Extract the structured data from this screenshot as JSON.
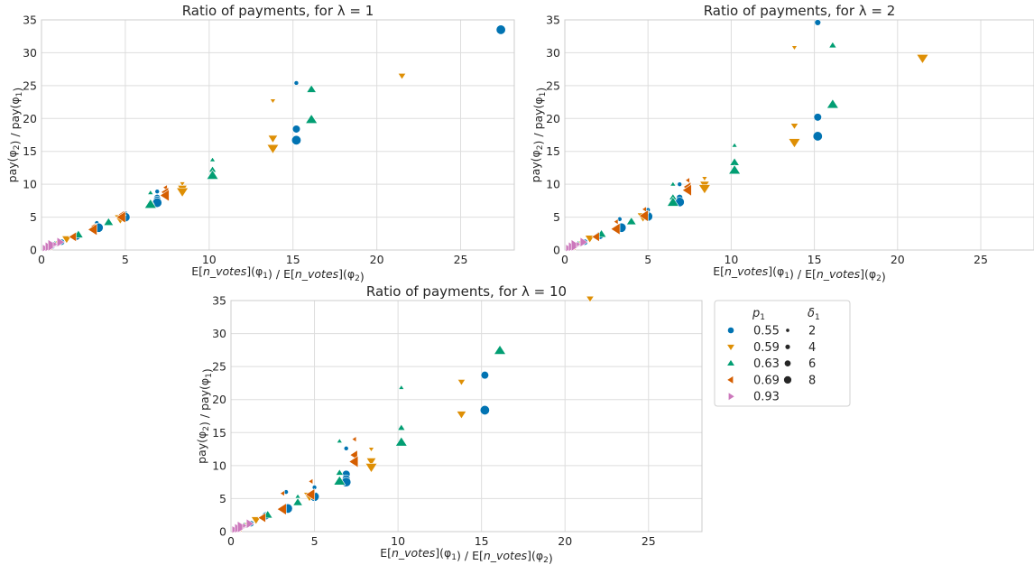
{
  "chart_data": [
    {
      "type": "scatter",
      "title": "Ratio of payments, for λ = 1",
      "xlabel": "E[n_votes](φ1) / E[n_votes](φ2)",
      "ylabel": "pay(φ2) / pay(φ1)",
      "xlim": [
        0,
        28.2
      ],
      "ylim": [
        0,
        35
      ],
      "xticks": [
        0,
        5,
        10,
        15,
        20,
        25
      ],
      "yticks": [
        0,
        5,
        10,
        15,
        20,
        25,
        30,
        35
      ],
      "grid": true,
      "points": [
        {
          "p1": "0.55",
          "d1": 2,
          "x": 15.2,
          "y": 25.4
        },
        {
          "p1": "0.55",
          "d1": 6,
          "x": 15.2,
          "y": 18.4
        },
        {
          "p1": "0.55",
          "d1": 8,
          "x": 15.2,
          "y": 16.7
        },
        {
          "p1": "0.55",
          "d1": 8,
          "x": 27.4,
          "y": 33.5
        },
        {
          "p1": "0.55",
          "d1": 2,
          "x": 6.9,
          "y": 8.9
        },
        {
          "p1": "0.55",
          "d1": 4,
          "x": 6.9,
          "y": 8.0
        },
        {
          "p1": "0.55",
          "d1": 6,
          "x": 6.9,
          "y": 7.6
        },
        {
          "p1": "0.55",
          "d1": 8,
          "x": 6.9,
          "y": 7.2
        },
        {
          "p1": "0.55",
          "d1": 2,
          "x": 5.0,
          "y": 5.6
        },
        {
          "p1": "0.55",
          "d1": 8,
          "x": 5.0,
          "y": 5.0
        },
        {
          "p1": "0.55",
          "d1": 2,
          "x": 3.3,
          "y": 4.1
        },
        {
          "p1": "0.55",
          "d1": 8,
          "x": 3.4,
          "y": 3.4
        },
        {
          "p1": "0.55",
          "d1": 6,
          "x": 2.1,
          "y": 2.1
        },
        {
          "p1": "0.55",
          "d1": 4,
          "x": 1.2,
          "y": 1.2
        },
        {
          "p1": "0.55",
          "d1": 6,
          "x": 0.6,
          "y": 0.7
        },
        {
          "p1": "0.59",
          "d1": 4,
          "x": 21.5,
          "y": 26.5
        },
        {
          "p1": "0.59",
          "d1": 2,
          "x": 13.8,
          "y": 22.7
        },
        {
          "p1": "0.59",
          "d1": 6,
          "x": 13.8,
          "y": 17.0
        },
        {
          "p1": "0.59",
          "d1": 8,
          "x": 13.8,
          "y": 15.5
        },
        {
          "p1": "0.59",
          "d1": 2,
          "x": 8.4,
          "y": 10.1
        },
        {
          "p1": "0.59",
          "d1": 6,
          "x": 8.4,
          "y": 9.4
        },
        {
          "p1": "0.59",
          "d1": 8,
          "x": 8.4,
          "y": 8.9
        },
        {
          "p1": "0.59",
          "d1": 8,
          "x": 4.7,
          "y": 4.8
        },
        {
          "p1": "0.59",
          "d1": 6,
          "x": 1.5,
          "y": 1.7
        },
        {
          "p1": "0.59",
          "d1": 4,
          "x": 0.9,
          "y": 1.0
        },
        {
          "p1": "0.63",
          "d1": 6,
          "x": 16.1,
          "y": 24.4
        },
        {
          "p1": "0.63",
          "d1": 8,
          "x": 16.1,
          "y": 19.8
        },
        {
          "p1": "0.63",
          "d1": 2,
          "x": 10.2,
          "y": 13.7
        },
        {
          "p1": "0.63",
          "d1": 4,
          "x": 10.2,
          "y": 12.2
        },
        {
          "p1": "0.63",
          "d1": 8,
          "x": 10.2,
          "y": 11.3
        },
        {
          "p1": "0.63",
          "d1": 2,
          "x": 6.5,
          "y": 8.7
        },
        {
          "p1": "0.63",
          "d1": 4,
          "x": 6.5,
          "y": 7.3
        },
        {
          "p1": "0.63",
          "d1": 8,
          "x": 6.5,
          "y": 6.9
        },
        {
          "p1": "0.63",
          "d1": 6,
          "x": 4.0,
          "y": 4.2
        },
        {
          "p1": "0.63",
          "d1": 6,
          "x": 2.2,
          "y": 2.3
        },
        {
          "p1": "0.63",
          "d1": 4,
          "x": 0.8,
          "y": 0.9
        },
        {
          "p1": "0.69",
          "d1": 2,
          "x": 7.4,
          "y": 9.5
        },
        {
          "p1": "0.69",
          "d1": 6,
          "x": 7.4,
          "y": 8.8
        },
        {
          "p1": "0.69",
          "d1": 8,
          "x": 7.4,
          "y": 8.3
        },
        {
          "p1": "0.69",
          "d1": 4,
          "x": 4.8,
          "y": 5.4
        },
        {
          "p1": "0.69",
          "d1": 8,
          "x": 4.8,
          "y": 5.0
        },
        {
          "p1": "0.69",
          "d1": 2,
          "x": 3.1,
          "y": 3.6
        },
        {
          "p1": "0.69",
          "d1": 8,
          "x": 3.1,
          "y": 3.1
        },
        {
          "p1": "0.69",
          "d1": 6,
          "x": 1.9,
          "y": 2.0
        },
        {
          "p1": "0.69",
          "d1": 4,
          "x": 0.5,
          "y": 0.5
        },
        {
          "p1": "0.93",
          "d1": 4,
          "x": 0.2,
          "y": 0.3
        },
        {
          "p1": "0.93",
          "d1": 6,
          "x": 0.4,
          "y": 0.5
        },
        {
          "p1": "0.93",
          "d1": 8,
          "x": 0.6,
          "y": 0.7
        },
        {
          "p1": "0.93",
          "d1": 2,
          "x": 0.8,
          "y": 0.9
        },
        {
          "p1": "0.93",
          "d1": 6,
          "x": 1.1,
          "y": 1.2
        }
      ]
    },
    {
      "type": "scatter",
      "title": "Ratio of payments, for λ = 2",
      "xlabel": "E[n_votes](φ1) / E[n_votes](φ2)",
      "ylabel": "pay(φ2) / pay(φ1)",
      "xlim": [
        0,
        28.2
      ],
      "ylim": [
        0,
        35
      ],
      "xticks": [
        0,
        5,
        10,
        15,
        20,
        25
      ],
      "yticks": [
        0,
        5,
        10,
        15,
        20,
        25,
        30,
        35
      ],
      "grid": true,
      "points": [
        {
          "p1": "0.55",
          "d1": 4,
          "x": 15.2,
          "y": 34.6
        },
        {
          "p1": "0.55",
          "d1": 6,
          "x": 15.2,
          "y": 20.2
        },
        {
          "p1": "0.55",
          "d1": 8,
          "x": 15.2,
          "y": 17.3
        },
        {
          "p1": "0.55",
          "d1": 2,
          "x": 6.9,
          "y": 10.0
        },
        {
          "p1": "0.55",
          "d1": 4,
          "x": 6.9,
          "y": 8.0
        },
        {
          "p1": "0.55",
          "d1": 8,
          "x": 6.9,
          "y": 7.3
        },
        {
          "p1": "0.55",
          "d1": 2,
          "x": 5.0,
          "y": 6.1
        },
        {
          "p1": "0.55",
          "d1": 8,
          "x": 5.0,
          "y": 5.1
        },
        {
          "p1": "0.55",
          "d1": 2,
          "x": 3.3,
          "y": 4.7
        },
        {
          "p1": "0.55",
          "d1": 8,
          "x": 3.4,
          "y": 3.4
        },
        {
          "p1": "0.55",
          "d1": 6,
          "x": 2.1,
          "y": 2.2
        },
        {
          "p1": "0.55",
          "d1": 4,
          "x": 1.2,
          "y": 1.2
        },
        {
          "p1": "0.59",
          "d1": 2,
          "x": 13.8,
          "y": 30.8
        },
        {
          "p1": "0.59",
          "d1": 4,
          "x": 13.8,
          "y": 18.9
        },
        {
          "p1": "0.59",
          "d1": 8,
          "x": 13.8,
          "y": 16.4
        },
        {
          "p1": "0.59",
          "d1": 8,
          "x": 21.5,
          "y": 29.2
        },
        {
          "p1": "0.59",
          "d1": 2,
          "x": 8.4,
          "y": 10.9
        },
        {
          "p1": "0.59",
          "d1": 6,
          "x": 8.4,
          "y": 10.0
        },
        {
          "p1": "0.59",
          "d1": 8,
          "x": 8.4,
          "y": 9.4
        },
        {
          "p1": "0.59",
          "d1": 8,
          "x": 4.7,
          "y": 5.1
        },
        {
          "p1": "0.59",
          "d1": 6,
          "x": 1.5,
          "y": 1.8
        },
        {
          "p1": "0.59",
          "d1": 4,
          "x": 0.9,
          "y": 1.0
        },
        {
          "p1": "0.63",
          "d1": 4,
          "x": 16.1,
          "y": 31.1
        },
        {
          "p1": "0.63",
          "d1": 8,
          "x": 16.1,
          "y": 22.1
        },
        {
          "p1": "0.63",
          "d1": 2,
          "x": 10.2,
          "y": 15.9
        },
        {
          "p1": "0.63",
          "d1": 6,
          "x": 10.2,
          "y": 13.3
        },
        {
          "p1": "0.63",
          "d1": 8,
          "x": 10.2,
          "y": 12.1
        },
        {
          "p1": "0.63",
          "d1": 2,
          "x": 6.5,
          "y": 10.0
        },
        {
          "p1": "0.63",
          "d1": 4,
          "x": 6.5,
          "y": 8.0
        },
        {
          "p1": "0.63",
          "d1": 8,
          "x": 6.5,
          "y": 7.2
        },
        {
          "p1": "0.63",
          "d1": 6,
          "x": 4.0,
          "y": 4.3
        },
        {
          "p1": "0.63",
          "d1": 6,
          "x": 2.2,
          "y": 2.4
        },
        {
          "p1": "0.63",
          "d1": 4,
          "x": 0.8,
          "y": 0.9
        },
        {
          "p1": "0.69",
          "d1": 2,
          "x": 7.4,
          "y": 10.6
        },
        {
          "p1": "0.69",
          "d1": 6,
          "x": 7.4,
          "y": 9.6
        },
        {
          "p1": "0.69",
          "d1": 8,
          "x": 7.4,
          "y": 9.1
        },
        {
          "p1": "0.69",
          "d1": 2,
          "x": 4.8,
          "y": 6.2
        },
        {
          "p1": "0.69",
          "d1": 8,
          "x": 4.8,
          "y": 5.2
        },
        {
          "p1": "0.69",
          "d1": 2,
          "x": 3.1,
          "y": 4.3
        },
        {
          "p1": "0.69",
          "d1": 8,
          "x": 3.1,
          "y": 3.2
        },
        {
          "p1": "0.69",
          "d1": 6,
          "x": 1.9,
          "y": 2.0
        },
        {
          "p1": "0.69",
          "d1": 4,
          "x": 0.5,
          "y": 0.5
        },
        {
          "p1": "0.93",
          "d1": 4,
          "x": 0.2,
          "y": 0.3
        },
        {
          "p1": "0.93",
          "d1": 6,
          "x": 0.4,
          "y": 0.5
        },
        {
          "p1": "0.93",
          "d1": 8,
          "x": 0.6,
          "y": 0.7
        },
        {
          "p1": "0.93",
          "d1": 2,
          "x": 0.8,
          "y": 0.9
        },
        {
          "p1": "0.93",
          "d1": 6,
          "x": 1.1,
          "y": 1.2
        }
      ]
    },
    {
      "type": "scatter",
      "title": "Ratio of payments, for λ = 10",
      "xlabel": "E[n_votes](φ1) / E[n_votes](φ2)",
      "ylabel": "pay(φ2) / pay(φ1)",
      "xlim": [
        0,
        28.2
      ],
      "ylim": [
        0,
        35
      ],
      "xticks": [
        0,
        5,
        10,
        15,
        20,
        25
      ],
      "yticks": [
        0,
        5,
        10,
        15,
        20,
        25,
        30,
        35
      ],
      "grid": true,
      "points": [
        {
          "p1": "0.55",
          "d1": 6,
          "x": 15.2,
          "y": 23.7
        },
        {
          "p1": "0.55",
          "d1": 8,
          "x": 15.2,
          "y": 18.4
        },
        {
          "p1": "0.55",
          "d1": 2,
          "x": 6.9,
          "y": 12.6
        },
        {
          "p1": "0.55",
          "d1": 6,
          "x": 6.9,
          "y": 8.7
        },
        {
          "p1": "0.55",
          "d1": 6,
          "x": 6.9,
          "y": 8.0
        },
        {
          "p1": "0.55",
          "d1": 8,
          "x": 6.9,
          "y": 7.5
        },
        {
          "p1": "0.55",
          "d1": 2,
          "x": 5.0,
          "y": 6.7
        },
        {
          "p1": "0.55",
          "d1": 8,
          "x": 5.0,
          "y": 5.3
        },
        {
          "p1": "0.55",
          "d1": 2,
          "x": 3.3,
          "y": 6.0
        },
        {
          "p1": "0.55",
          "d1": 8,
          "x": 3.4,
          "y": 3.5
        },
        {
          "p1": "0.55",
          "d1": 6,
          "x": 2.1,
          "y": 2.4
        },
        {
          "p1": "0.55",
          "d1": 4,
          "x": 1.2,
          "y": 1.2
        },
        {
          "p1": "0.59",
          "d1": 4,
          "x": 21.5,
          "y": 35.3
        },
        {
          "p1": "0.59",
          "d1": 4,
          "x": 13.8,
          "y": 22.7
        },
        {
          "p1": "0.59",
          "d1": 6,
          "x": 13.8,
          "y": 17.8
        },
        {
          "p1": "0.59",
          "d1": 2,
          "x": 8.4,
          "y": 12.5
        },
        {
          "p1": "0.59",
          "d1": 6,
          "x": 8.4,
          "y": 10.7
        },
        {
          "p1": "0.59",
          "d1": 8,
          "x": 8.4,
          "y": 9.8
        },
        {
          "p1": "0.59",
          "d1": 8,
          "x": 4.7,
          "y": 5.4
        },
        {
          "p1": "0.59",
          "d1": 6,
          "x": 1.5,
          "y": 1.8
        },
        {
          "p1": "0.59",
          "d1": 4,
          "x": 0.9,
          "y": 1.0
        },
        {
          "p1": "0.63",
          "d1": 8,
          "x": 16.1,
          "y": 27.4
        },
        {
          "p1": "0.63",
          "d1": 2,
          "x": 10.2,
          "y": 21.8
        },
        {
          "p1": "0.63",
          "d1": 4,
          "x": 10.2,
          "y": 15.7
        },
        {
          "p1": "0.63",
          "d1": 8,
          "x": 10.2,
          "y": 13.5
        },
        {
          "p1": "0.63",
          "d1": 2,
          "x": 6.5,
          "y": 13.7
        },
        {
          "p1": "0.63",
          "d1": 4,
          "x": 6.5,
          "y": 8.9
        },
        {
          "p1": "0.63",
          "d1": 8,
          "x": 6.5,
          "y": 7.6
        },
        {
          "p1": "0.63",
          "d1": 2,
          "x": 4.0,
          "y": 5.3
        },
        {
          "p1": "0.63",
          "d1": 6,
          "x": 4.0,
          "y": 4.4
        },
        {
          "p1": "0.63",
          "d1": 6,
          "x": 2.2,
          "y": 2.5
        },
        {
          "p1": "0.63",
          "d1": 4,
          "x": 0.8,
          "y": 0.9
        },
        {
          "p1": "0.69",
          "d1": 2,
          "x": 7.4,
          "y": 14.0
        },
        {
          "p1": "0.69",
          "d1": 6,
          "x": 7.4,
          "y": 11.6
        },
        {
          "p1": "0.69",
          "d1": 8,
          "x": 7.4,
          "y": 10.6
        },
        {
          "p1": "0.69",
          "d1": 2,
          "x": 4.8,
          "y": 7.6
        },
        {
          "p1": "0.69",
          "d1": 8,
          "x": 4.8,
          "y": 5.6
        },
        {
          "p1": "0.69",
          "d1": 2,
          "x": 3.1,
          "y": 5.8
        },
        {
          "p1": "0.69",
          "d1": 8,
          "x": 3.1,
          "y": 3.4
        },
        {
          "p1": "0.69",
          "d1": 6,
          "x": 1.9,
          "y": 2.1
        },
        {
          "p1": "0.69",
          "d1": 4,
          "x": 0.5,
          "y": 0.5
        },
        {
          "p1": "0.93",
          "d1": 4,
          "x": 0.2,
          "y": 0.3
        },
        {
          "p1": "0.93",
          "d1": 6,
          "x": 0.4,
          "y": 0.5
        },
        {
          "p1": "0.93",
          "d1": 8,
          "x": 0.6,
          "y": 0.7
        },
        {
          "p1": "0.93",
          "d1": 2,
          "x": 0.8,
          "y": 0.9
        },
        {
          "p1": "0.93",
          "d1": 6,
          "x": 1.1,
          "y": 1.2
        }
      ]
    }
  ],
  "legend": {
    "placement": "right of bottom chart",
    "hue_title": "p1",
    "size_title": "δ1",
    "hue_entries": [
      {
        "label": "0.55",
        "marker": "circle",
        "color": "#0173b2"
      },
      {
        "label": "0.59",
        "marker": "triangle-down",
        "color": "#de8f05"
      },
      {
        "label": "0.63",
        "marker": "triangle-up",
        "color": "#029e73"
      },
      {
        "label": "0.69",
        "marker": "triangle-left",
        "color": "#d55e00"
      },
      {
        "label": "0.93",
        "marker": "triangle-right",
        "color": "#cc78bc"
      }
    ],
    "size_entries": [
      {
        "label": "2",
        "size": 2
      },
      {
        "label": "4",
        "size": 4
      },
      {
        "label": "6",
        "size": 6
      },
      {
        "label": "8",
        "size": 8
      }
    ]
  }
}
